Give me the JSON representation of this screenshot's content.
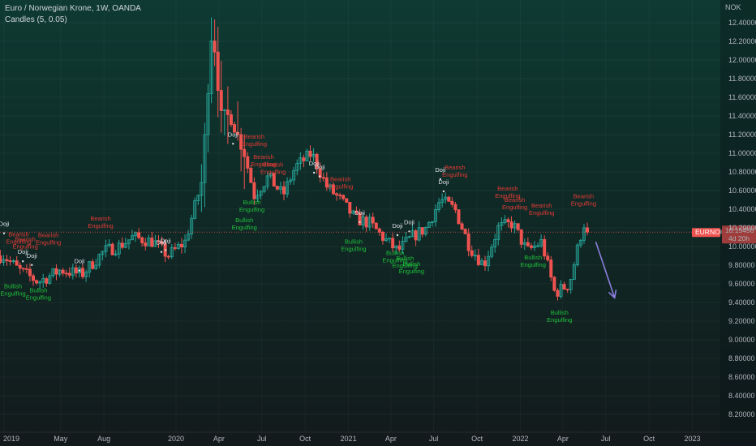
{
  "header": {
    "title": "Euro / Norwegian Krone, 1W, OANDA",
    "indicator": "Candles (5, 0.05)"
  },
  "price_axis": {
    "currency": "NOK",
    "ticks": [
      "12.40000",
      "12.20000",
      "12.00000",
      "11.80000",
      "11.60000",
      "11.40000",
      "11.20000",
      "11.00000",
      "10.80000",
      "10.60000",
      "10.40000",
      "10.20000",
      "10.00000",
      "9.80000",
      "9.60000",
      "9.40000",
      "9.20000",
      "9.00000",
      "8.80000",
      "8.60000",
      "8.40000",
      "8.20000"
    ]
  },
  "time_axis": {
    "ticks": [
      "2019",
      "May",
      "Aug",
      "2020",
      "Apr",
      "Jul",
      "Oct",
      "2021",
      "Apr",
      "Jul",
      "Oct",
      "2022",
      "Apr",
      "Jul",
      "Oct",
      "2023"
    ]
  },
  "price_tag": {
    "symbol": "EURNOK",
    "price": "10.15456",
    "countdown": "4d 20h"
  },
  "colors": {
    "up": "#26a69a",
    "down": "#ef5350",
    "bearish_label": "#e53935",
    "bullish_label": "#1fbf3a",
    "doji_label": "#e0e3eb",
    "arrow": "#8c7fe0",
    "price_line": "#ef5350"
  },
  "chart_data": {
    "type": "candlestick",
    "title": "Euro / Norwegian Krone, 1W, OANDA",
    "ylabel": "NOK",
    "ylim": [
      8.1,
      12.6
    ],
    "last_price": 10.15456,
    "trend_keypoints": [
      {
        "date": "2019-01-01",
        "close": 9.9
      },
      {
        "date": "2019-02-01",
        "close": 9.75
      },
      {
        "date": "2019-03-15",
        "close": 9.62
      },
      {
        "date": "2019-05-01",
        "close": 9.75
      },
      {
        "date": "2019-06-15",
        "close": 9.7
      },
      {
        "date": "2019-08-01",
        "close": 9.95
      },
      {
        "date": "2019-09-01",
        "close": 10.0
      },
      {
        "date": "2019-10-01",
        "close": 10.1
      },
      {
        "date": "2019-11-15",
        "close": 10.05
      },
      {
        "date": "2019-12-15",
        "close": 9.9
      },
      {
        "date": "2020-01-20",
        "close": 10.05
      },
      {
        "date": "2020-02-25",
        "close": 10.7
      },
      {
        "date": "2020-03-18",
        "close": 12.4
      },
      {
        "date": "2020-04-05",
        "close": 11.4
      },
      {
        "date": "2020-04-25",
        "close": 11.4
      },
      {
        "date": "2020-05-25",
        "close": 11.0
      },
      {
        "date": "2020-06-15",
        "close": 10.55
      },
      {
        "date": "2020-07-15",
        "close": 10.75
      },
      {
        "date": "2020-08-15",
        "close": 10.55
      },
      {
        "date": "2020-09-10",
        "close": 10.85
      },
      {
        "date": "2020-10-15",
        "close": 11.0
      },
      {
        "date": "2020-11-15",
        "close": 10.65
      },
      {
        "date": "2020-12-15",
        "close": 10.5
      },
      {
        "date": "2021-01-15",
        "close": 10.3
      },
      {
        "date": "2021-02-15",
        "close": 10.25
      },
      {
        "date": "2021-03-15",
        "close": 10.1
      },
      {
        "date": "2021-04-15",
        "close": 9.95
      },
      {
        "date": "2021-05-15",
        "close": 10.1
      },
      {
        "date": "2021-06-15",
        "close": 10.2
      },
      {
        "date": "2021-07-15",
        "close": 10.5
      },
      {
        "date": "2021-08-15",
        "close": 10.4
      },
      {
        "date": "2021-09-15",
        "close": 10.0
      },
      {
        "date": "2021-10-15",
        "close": 9.8
      },
      {
        "date": "2021-11-15",
        "close": 10.2
      },
      {
        "date": "2021-12-15",
        "close": 10.25
      },
      {
        "date": "2022-01-15",
        "close": 9.95
      },
      {
        "date": "2022-02-15",
        "close": 10.05
      },
      {
        "date": "2022-03-15",
        "close": 9.5
      },
      {
        "date": "2022-04-15",
        "close": 9.6
      },
      {
        "date": "2022-05-15",
        "close": 10.25
      },
      {
        "date": "2022-05-28",
        "close": 10.15456
      }
    ],
    "patterns": [
      {
        "date": "2019-01-01",
        "price": 10.22,
        "lines": [
          "Doji"
        ],
        "type": "doji",
        "pos": "above"
      },
      {
        "date": "2019-01-20",
        "price": 9.62,
        "lines": [
          "Bullish",
          "Engulfing"
        ],
        "type": "bullish",
        "pos": "below"
      },
      {
        "date": "2019-02-01",
        "price": 10.03,
        "lines": [
          "Bearish",
          "Engulfing"
        ],
        "type": "bearish",
        "pos": "above"
      },
      {
        "date": "2019-02-10",
        "price": 9.92,
        "lines": [
          "Doji"
        ],
        "type": "doji",
        "pos": "above"
      },
      {
        "date": "2019-02-15",
        "price": 9.98,
        "lines": [
          "Bearish",
          "Engulfing"
        ],
        "type": "bearish",
        "pos": "above"
      },
      {
        "date": "2019-03-01",
        "price": 9.88,
        "lines": [
          "Doji"
        ],
        "type": "doji",
        "pos": "above"
      },
      {
        "date": "2019-03-15",
        "price": 9.58,
        "lines": [
          "Bullish",
          "Engulfing"
        ],
        "type": "bullish",
        "pos": "below"
      },
      {
        "date": "2019-04-05",
        "price": 10.02,
        "lines": [
          "Bearish",
          "Engulfing"
        ],
        "type": "bearish",
        "pos": "above"
      },
      {
        "date": "2019-06-10",
        "price": 9.82,
        "lines": [
          "Doji"
        ],
        "type": "doji",
        "pos": "above"
      },
      {
        "date": "2019-07-25",
        "price": 10.2,
        "lines": [
          "Bearish",
          "Engulfing"
        ],
        "type": "bearish",
        "pos": "above"
      },
      {
        "date": "2019-12-01",
        "price": 10.02,
        "lines": [
          "Doji"
        ],
        "type": "doji",
        "pos": "above"
      },
      {
        "date": "2019-12-10",
        "price": 10.04,
        "lines": [
          "Doji"
        ],
        "type": "doji",
        "pos": "above"
      },
      {
        "date": "2020-05-01",
        "price": 11.18,
        "lines": [
          "Doji"
        ],
        "type": "doji",
        "pos": "above"
      },
      {
        "date": "2020-06-15",
        "price": 11.08,
        "lines": [
          "Bearish",
          "Engulfing"
        ],
        "type": "bearish",
        "pos": "above"
      },
      {
        "date": "2020-06-10",
        "price": 10.52,
        "lines": [
          "Bullish",
          "Engulfing"
        ],
        "type": "bullish",
        "pos": "below"
      },
      {
        "date": "2020-05-25",
        "price": 10.33,
        "lines": [
          "Bullish",
          "Engulfing"
        ],
        "type": "bullish",
        "pos": "below"
      },
      {
        "date": "2020-07-05",
        "price": 10.86,
        "lines": [
          "Bearish",
          "Engulfing"
        ],
        "type": "bearish",
        "pos": "above"
      },
      {
        "date": "2020-07-25",
        "price": 10.78,
        "lines": [
          "Bearish",
          "Engulfing"
        ],
        "type": "bearish",
        "pos": "above"
      },
      {
        "date": "2020-10-20",
        "price": 10.87,
        "lines": [
          "Doji"
        ],
        "type": "doji",
        "pos": "above"
      },
      {
        "date": "2020-11-01",
        "price": 10.83,
        "lines": [
          "Doji"
        ],
        "type": "doji",
        "pos": "above"
      },
      {
        "date": "2020-12-15",
        "price": 10.62,
        "lines": [
          "Bearish",
          "Engulfing"
        ],
        "type": "bearish",
        "pos": "above"
      },
      {
        "date": "2021-01-25",
        "price": 10.34,
        "lines": [
          "Doji"
        ],
        "type": "doji",
        "pos": "above"
      },
      {
        "date": "2021-01-12",
        "price": 10.1,
        "lines": [
          "Bullish",
          "Engulfing"
        ],
        "type": "bullish",
        "pos": "below"
      },
      {
        "date": "2021-04-15",
        "price": 10.2,
        "lines": [
          "Doji"
        ],
        "type": "doji",
        "pos": "above"
      },
      {
        "date": "2021-05-10",
        "price": 10.24,
        "lines": [
          "Doji"
        ],
        "type": "doji",
        "pos": "above"
      },
      {
        "date": "2021-04-10",
        "price": 9.98,
        "lines": [
          "Bullish",
          "Engulfing"
        ],
        "type": "bullish",
        "pos": "below"
      },
      {
        "date": "2021-05-01",
        "price": 9.92,
        "lines": [
          "Bullish",
          "Engulfing"
        ],
        "type": "bullish",
        "pos": "below"
      },
      {
        "date": "2021-05-15",
        "price": 9.86,
        "lines": [
          "Bullish",
          "Engulfing"
        ],
        "type": "bullish",
        "pos": "below"
      },
      {
        "date": "2021-07-15",
        "price": 10.8,
        "lines": [
          "Doji"
        ],
        "type": "doji",
        "pos": "above"
      },
      {
        "date": "2021-07-22",
        "price": 10.67,
        "lines": [
          "Doji"
        ],
        "type": "doji",
        "pos": "above"
      },
      {
        "date": "2021-08-15",
        "price": 10.75,
        "lines": [
          "Bearish",
          "Engulfing"
        ],
        "type": "bearish",
        "pos": "above"
      },
      {
        "date": "2021-12-05",
        "price": 10.52,
        "lines": [
          "Bearish",
          "Engulfing"
        ],
        "type": "bearish",
        "pos": "above"
      },
      {
        "date": "2021-12-20",
        "price": 10.4,
        "lines": [
          "Bearish",
          "Engulfing"
        ],
        "type": "bearish",
        "pos": "above"
      },
      {
        "date": "2022-01-28",
        "price": 9.93,
        "lines": [
          "Bullish",
          "Engulfing"
        ],
        "type": "bullish",
        "pos": "below"
      },
      {
        "date": "2022-02-15",
        "price": 10.34,
        "lines": [
          "Bearish",
          "Engulfing"
        ],
        "type": "bearish",
        "pos": "above"
      },
      {
        "date": "2022-03-25",
        "price": 9.34,
        "lines": [
          "Bullish",
          "Engulfing"
        ],
        "type": "bullish",
        "pos": "below"
      },
      {
        "date": "2022-05-15",
        "price": 10.44,
        "lines": [
          "Bearish",
          "Engulfing"
        ],
        "type": "bearish",
        "pos": "above"
      }
    ],
    "projection_arrow": {
      "from": {
        "date": "2022-06-10",
        "price": 10.05
      },
      "to": {
        "date": "2022-07-20",
        "price": 9.45
      }
    }
  }
}
